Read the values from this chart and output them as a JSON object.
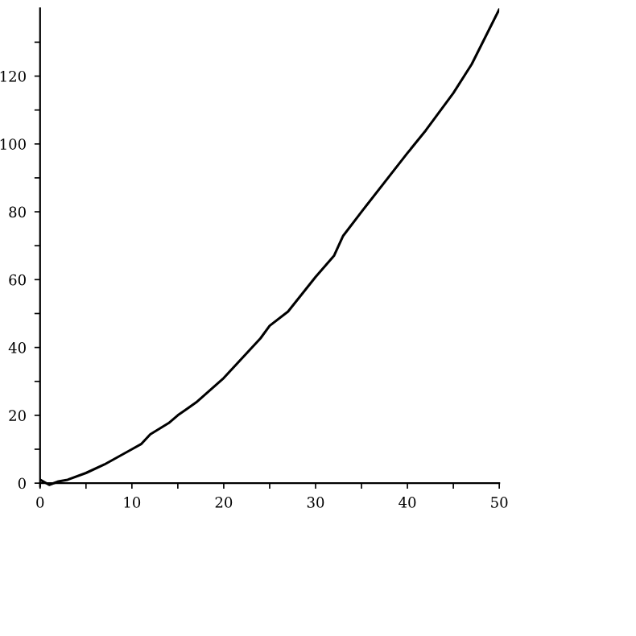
{
  "chart_data": {
    "type": "line",
    "x": [
      0,
      1,
      2,
      3,
      5,
      7,
      10,
      11,
      12,
      14,
      15,
      17,
      20,
      24,
      25,
      27,
      30,
      32,
      33,
      35,
      40,
      42,
      45,
      47,
      50
    ],
    "series": [
      {
        "color": "#000000",
        "values": [
          1,
          -0.5,
          0.5,
          1,
          3,
          5.5,
          10,
          11.5,
          14.4,
          17.7,
          20,
          23.8,
          31,
          42.7,
          46.4,
          50.6,
          60.8,
          67,
          72.9,
          80,
          97.3,
          104,
          115,
          123.5,
          139.7
        ]
      }
    ],
    "xlim": [
      0,
      50
    ],
    "ylim": [
      -1,
      140
    ],
    "xticks": [
      0,
      {
        "value": 5,
        "label": null
      },
      10,
      {
        "value": 15,
        "label": null
      },
      20,
      {
        "value": 25,
        "label": null
      },
      30,
      {
        "value": 35,
        "label": null
      },
      40,
      {
        "value": 45,
        "label": null
      },
      50
    ],
    "yticks": [
      0,
      {
        "value": 10,
        "label": null
      },
      20,
      {
        "value": 30,
        "label": null
      },
      40,
      {
        "value": 50,
        "label": null
      },
      60,
      {
        "value": 70,
        "label": null
      },
      80,
      {
        "value": 90,
        "label": null
      },
      100,
      {
        "value": 110,
        "label": null
      },
      120,
      {
        "value": 130,
        "label": null
      }
    ],
    "grid": false,
    "legend": false,
    "marker": "none",
    "line_style": "solid"
  }
}
